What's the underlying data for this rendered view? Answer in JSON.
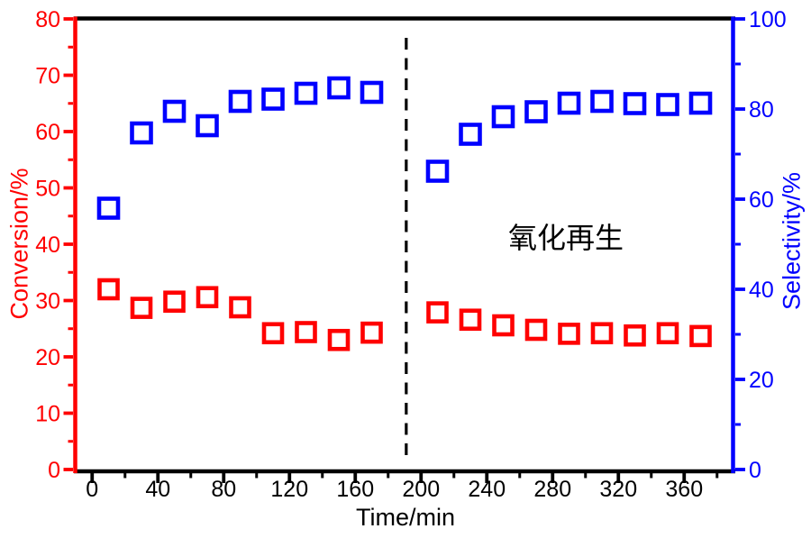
{
  "chart_data": {
    "type": "scatter",
    "title": "",
    "xlabel": "Time/min",
    "ylabel_left": "Conversion/%",
    "ylabel_right": "Selectivity/%",
    "xlim": [
      -10,
      390
    ],
    "ylim_left": [
      0,
      80
    ],
    "ylim_right": [
      0,
      100
    ],
    "grid": "off",
    "legend": "none",
    "colors": {
      "left_axis": "#ff0000",
      "right_axis": "#0000ff",
      "frame": "#000000",
      "background": "#ffffff"
    },
    "x_major_ticks": [
      0,
      40,
      80,
      120,
      160,
      200,
      240,
      280,
      320,
      360
    ],
    "x_minor_ticks": [
      20,
      60,
      100,
      140,
      180,
      220,
      260,
      300,
      340,
      380
    ],
    "left_major_ticks": [
      0,
      10,
      20,
      30,
      40,
      50,
      60,
      70,
      80
    ],
    "left_minor_ticks": [
      5,
      15,
      25,
      35,
      45,
      55,
      65,
      75
    ],
    "right_major_ticks": [
      0,
      20,
      40,
      60,
      80,
      100
    ],
    "right_minor_ticks": [
      10,
      30,
      50,
      70,
      90
    ],
    "vline": {
      "x": 191,
      "style": "dashed",
      "color": "#000000"
    },
    "annotation": {
      "text": "氧化再生",
      "x": 288,
      "y_right": 51
    },
    "series": [
      {
        "name": "Conversion",
        "axis": "left",
        "marker": "open-square",
        "color": "#ff0000",
        "marker_size": 20,
        "x": [
          10,
          30,
          50,
          70,
          90,
          110,
          130,
          150,
          170,
          210,
          230,
          250,
          270,
          290,
          310,
          330,
          350,
          370
        ],
        "y": [
          32.0,
          28.7,
          29.8,
          30.6,
          28.8,
          24.2,
          24.4,
          23.0,
          24.3,
          27.9,
          26.6,
          25.6,
          24.8,
          24.1,
          24.2,
          23.8,
          24.2,
          23.7
        ]
      },
      {
        "name": "Selectivity",
        "axis": "right",
        "marker": "open-square",
        "color": "#0000ff",
        "marker_size": 21,
        "x": [
          10,
          30,
          50,
          70,
          90,
          110,
          130,
          150,
          170,
          210,
          230,
          250,
          270,
          290,
          310,
          330,
          350,
          370
        ],
        "y": [
          58.0,
          74.7,
          79.5,
          76.3,
          81.7,
          82.2,
          83.5,
          84.7,
          83.7,
          66.2,
          74.4,
          78.3,
          79.4,
          81.3,
          81.7,
          81.2,
          81.0,
          81.3
        ]
      }
    ]
  }
}
